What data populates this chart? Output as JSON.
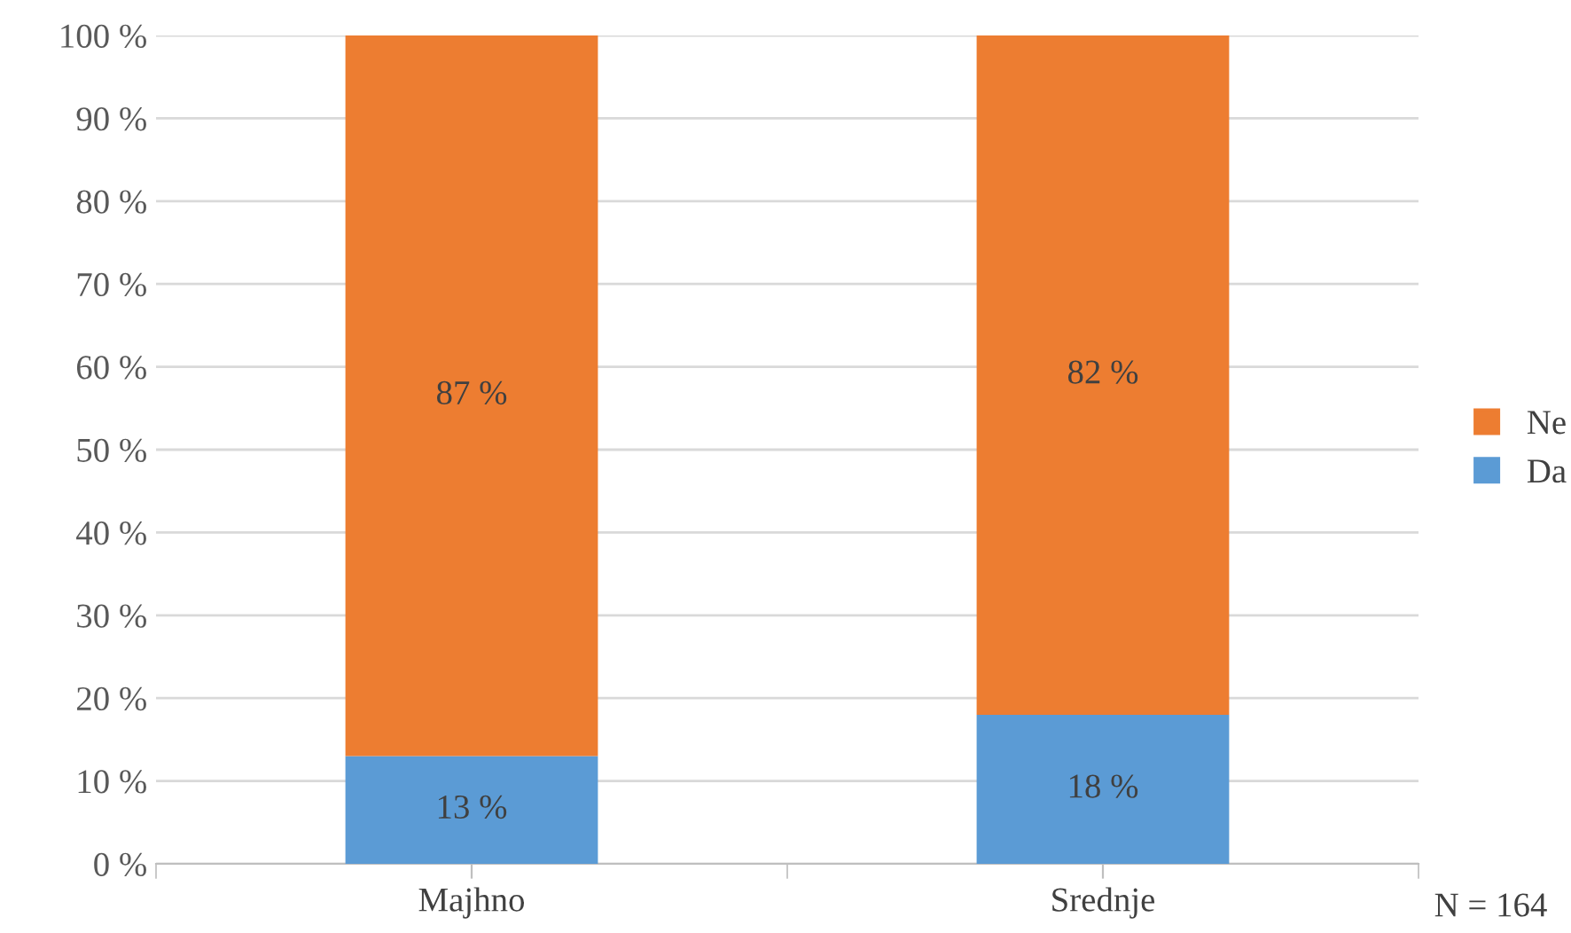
{
  "chart_data": {
    "type": "bar",
    "stacked": true,
    "categories": [
      "Majhno",
      "Srednje"
    ],
    "series": [
      {
        "name": "Da",
        "color": "#5b9bd5",
        "values": [
          13,
          18
        ],
        "value_labels": [
          "13 %",
          "18 %"
        ]
      },
      {
        "name": "Ne",
        "color": "#ed7d31",
        "values": [
          87,
          82
        ],
        "value_labels": [
          "87 %",
          "82 %"
        ]
      }
    ],
    "ylim": [
      0,
      100
    ],
    "yticks": [
      {
        "value": 0,
        "label": "0 %"
      },
      {
        "value": 10,
        "label": "10 %"
      },
      {
        "value": 20,
        "label": "20 %"
      },
      {
        "value": 30,
        "label": "30 %"
      },
      {
        "value": 40,
        "label": "40 %"
      },
      {
        "value": 50,
        "label": "50 %"
      },
      {
        "value": 60,
        "label": "60 %"
      },
      {
        "value": 70,
        "label": "70 %"
      },
      {
        "value": 80,
        "label": "80 %"
      },
      {
        "value": 90,
        "label": "90 %"
      },
      {
        "value": 100,
        "label": "100 %"
      }
    ],
    "grid": "y",
    "legend": "right",
    "annotations": [
      "N = 164"
    ]
  }
}
